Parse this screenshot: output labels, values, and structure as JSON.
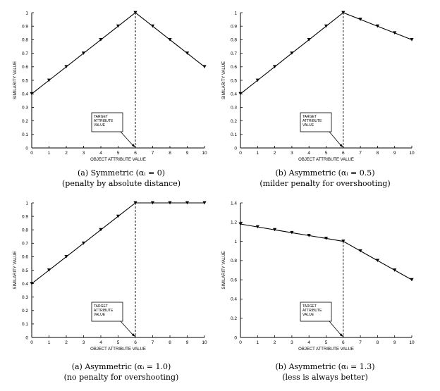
{
  "figure": {
    "panels": [
      {
        "caption_line1": "(a) Symmetric (αᵢ = 0)",
        "caption_line2": "(penalty by absolute distance)",
        "annotation": [
          "TARGET",
          "ATTRIBUTE",
          "VALUE"
        ]
      },
      {
        "caption_line1": "(b) Asymmetric (αᵢ = 0.5)",
        "caption_line2": "(milder penalty for overshooting)",
        "annotation": [
          "TARGET",
          "ATTRIBUTE",
          "VALUE"
        ]
      },
      {
        "caption_line1": "(a) Asymmetric (αᵢ = 1.0)",
        "caption_line2": "(no penalty for overshooting)",
        "annotation": [
          "TARGET",
          "ATTRIBUTE",
          "VALUE"
        ]
      },
      {
        "caption_line1": "(b) Asymmetric (αᵢ = 1.3)",
        "caption_line2": "(less is always better)",
        "annotation": [
          "TARGET",
          "ATTRIBUTE",
          "VALUE"
        ]
      }
    ]
  },
  "chart_data": [
    {
      "type": "line",
      "xlabel": "OBJECT ATTRIBUTE VALUE",
      "ylabel": "SIMILARITY VALUE",
      "xlim": [
        0,
        10
      ],
      "ylim": [
        0,
        1
      ],
      "x_ticks": [
        0,
        1,
        2,
        3,
        4,
        5,
        6,
        7,
        8,
        9,
        10
      ],
      "y_ticks": [
        0,
        0.1,
        0.2,
        0.3,
        0.4,
        0.5,
        0.6,
        0.7,
        0.8,
        0.9,
        1
      ],
      "y_tick_labels": [
        "0",
        "0.1",
        "0.2",
        "0.3",
        "0.4",
        "0.5",
        "0.6",
        "0.7",
        "0.8",
        "0.9",
        "1"
      ],
      "target_x": 6,
      "x": [
        0,
        1,
        2,
        3,
        4,
        5,
        6,
        7,
        8,
        9,
        10
      ],
      "y": [
        0.4,
        0.5,
        0.6,
        0.7,
        0.8,
        0.9,
        1.0,
        0.9,
        0.8,
        0.7,
        0.6
      ],
      "marker": "triangle-down",
      "grid": false
    },
    {
      "type": "line",
      "xlabel": "OBJECT ATTRIBUTE VALUE",
      "ylabel": "SIMILARITY VALUE",
      "xlim": [
        0,
        10
      ],
      "ylim": [
        0,
        1
      ],
      "x_ticks": [
        0,
        1,
        2,
        3,
        4,
        5,
        6,
        7,
        8,
        9,
        10
      ],
      "y_ticks": [
        0,
        0.1,
        0.2,
        0.3,
        0.4,
        0.5,
        0.6,
        0.7,
        0.8,
        0.9,
        1
      ],
      "y_tick_labels": [
        "0",
        "0.1",
        "0.2",
        "0.3",
        "0.4",
        "0.5",
        "0.6",
        "0.7",
        "0.8",
        "0.9",
        "1"
      ],
      "target_x": 6,
      "x": [
        0,
        1,
        2,
        3,
        4,
        5,
        6,
        7,
        8,
        9,
        10
      ],
      "y": [
        0.4,
        0.5,
        0.6,
        0.7,
        0.8,
        0.9,
        1.0,
        0.95,
        0.9,
        0.85,
        0.8
      ],
      "marker": "triangle-down",
      "grid": false
    },
    {
      "type": "line",
      "xlabel": "OBJECT ATTRIBUTE VALUE",
      "ylabel": "SIMILARITY VALUE",
      "xlim": [
        0,
        10
      ],
      "ylim": [
        0,
        1
      ],
      "x_ticks": [
        0,
        1,
        2,
        3,
        4,
        5,
        6,
        7,
        8,
        9,
        10
      ],
      "y_ticks": [
        0,
        0.1,
        0.2,
        0.3,
        0.4,
        0.5,
        0.6,
        0.7,
        0.8,
        0.9,
        1
      ],
      "y_tick_labels": [
        "0",
        "0.1",
        "0.2",
        "0.3",
        "0.4",
        "0.5",
        "0.6",
        "0.7",
        "0.8",
        "0.9",
        "1"
      ],
      "target_x": 6,
      "x": [
        0,
        1,
        2,
        3,
        4,
        5,
        6,
        7,
        8,
        9,
        10
      ],
      "y": [
        0.4,
        0.5,
        0.6,
        0.7,
        0.8,
        0.9,
        1.0,
        1.0,
        1.0,
        1.0,
        1.0
      ],
      "marker": "triangle-down",
      "grid": false
    },
    {
      "type": "line",
      "xlabel": "OBJECT ATTRIBUTE VALUE",
      "ylabel": "SIMILARITY VALUE",
      "xlim": [
        0,
        10
      ],
      "ylim": [
        0,
        1.4
      ],
      "x_ticks": [
        0,
        1,
        2,
        3,
        4,
        5,
        6,
        7,
        8,
        9,
        10
      ],
      "y_ticks": [
        0,
        0.2,
        0.4,
        0.6,
        0.8,
        1,
        1.2,
        1.4
      ],
      "y_tick_labels": [
        "0",
        "0.2",
        "0.4",
        "0.6",
        "0.8",
        "1",
        "1.2",
        "1.4"
      ],
      "target_x": 6,
      "x": [
        0,
        1,
        2,
        3,
        4,
        5,
        6,
        7,
        8,
        9,
        10
      ],
      "y": [
        1.18,
        1.15,
        1.12,
        1.09,
        1.06,
        1.03,
        1.0,
        0.9,
        0.8,
        0.7,
        0.6
      ],
      "marker": "triangle-down",
      "grid": false
    }
  ]
}
